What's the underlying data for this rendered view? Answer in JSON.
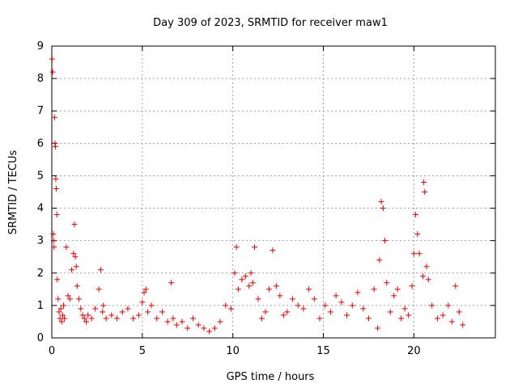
{
  "chart_data": {
    "type": "scatter",
    "title": "Day 309 of 2023, SRMTID for receiver maw1",
    "xlabel": "GPS time / hours",
    "ylabel": "SRMTID / TECUs",
    "xlim": [
      0,
      24.5
    ],
    "ylim": [
      0,
      9
    ],
    "x_ticks": [
      0,
      5,
      10,
      15,
      20
    ],
    "y_ticks": [
      0,
      1,
      2,
      3,
      4,
      5,
      6,
      7,
      8,
      9
    ],
    "x_tick_labels": [
      "0",
      "5",
      "10",
      "15",
      "20"
    ],
    "y_tick_labels": [
      "0",
      "1",
      "2",
      "3",
      "4",
      "5",
      "6",
      "7",
      "8",
      "9"
    ],
    "grid": true,
    "marker": "+",
    "color": "#e00000",
    "series": [
      {
        "name": "SRMTID",
        "x": [
          0.02,
          0.05,
          0.08,
          0.1,
          0.12,
          0.15,
          0.18,
          0.2,
          0.22,
          0.25,
          0.28,
          0.3,
          0.35,
          0.4,
          0.45,
          0.5,
          0.55,
          0.6,
          0.65,
          0.7,
          0.8,
          0.9,
          1.0,
          1.1,
          1.2,
          1.25,
          1.3,
          1.35,
          1.4,
          1.5,
          1.6,
          1.7,
          1.8,
          1.9,
          2.0,
          2.2,
          2.4,
          2.6,
          2.7,
          2.8,
          2.85,
          3.0,
          3.3,
          3.6,
          3.9,
          4.2,
          4.5,
          4.8,
          5.0,
          5.1,
          5.2,
          5.3,
          5.5,
          5.8,
          6.1,
          6.4,
          6.6,
          6.7,
          6.9,
          7.2,
          7.5,
          7.8,
          8.1,
          8.4,
          8.7,
          9.0,
          9.3,
          9.6,
          9.9,
          10.1,
          10.2,
          10.3,
          10.5,
          10.7,
          10.9,
          11.0,
          11.1,
          11.2,
          11.4,
          11.6,
          11.8,
          12.0,
          12.2,
          12.4,
          12.6,
          12.8,
          13.0,
          13.3,
          13.6,
          13.9,
          14.2,
          14.5,
          14.8,
          15.1,
          15.4,
          15.7,
          16.0,
          16.3,
          16.6,
          16.9,
          17.2,
          17.5,
          17.8,
          18.0,
          18.1,
          18.2,
          18.3,
          18.4,
          18.5,
          18.7,
          18.9,
          19.1,
          19.3,
          19.5,
          19.7,
          19.9,
          20.0,
          20.1,
          20.2,
          20.3,
          20.5,
          20.55,
          20.6,
          20.7,
          20.8,
          21.0,
          21.3,
          21.6,
          21.9,
          22.1,
          22.3,
          22.5,
          22.7
        ],
        "y": [
          8.6,
          8.2,
          3.2,
          3.0,
          2.8,
          6.8,
          6.0,
          5.9,
          4.9,
          4.6,
          3.8,
          1.8,
          1.2,
          0.8,
          0.6,
          0.9,
          0.5,
          0.7,
          1.0,
          0.6,
          2.8,
          1.3,
          1.2,
          2.1,
          2.6,
          3.5,
          2.5,
          2.2,
          1.6,
          1.2,
          0.9,
          0.7,
          0.6,
          0.5,
          0.7,
          0.6,
          0.9,
          1.5,
          2.1,
          0.8,
          1.0,
          0.6,
          0.7,
          0.6,
          0.8,
          0.9,
          0.6,
          0.7,
          1.1,
          1.4,
          1.5,
          0.8,
          1.0,
          0.6,
          0.8,
          0.5,
          1.7,
          0.6,
          0.4,
          0.5,
          0.3,
          0.6,
          0.4,
          0.3,
          0.2,
          0.3,
          0.5,
          1.0,
          0.9,
          2.0,
          2.8,
          1.5,
          1.8,
          1.9,
          1.6,
          2.0,
          1.7,
          2.8,
          1.2,
          0.6,
          0.8,
          1.5,
          2.7,
          1.6,
          1.3,
          0.7,
          0.8,
          1.2,
          1.0,
          0.9,
          1.5,
          1.2,
          0.6,
          1.0,
          0.8,
          1.3,
          1.1,
          0.7,
          1.0,
          1.4,
          0.9,
          0.6,
          1.5,
          0.3,
          2.4,
          4.2,
          4.0,
          3.0,
          1.7,
          0.8,
          1.3,
          1.5,
          0.6,
          0.9,
          0.7,
          1.6,
          2.6,
          3.8,
          3.2,
          2.6,
          1.9,
          4.8,
          4.5,
          2.2,
          1.8,
          1.0,
          0.6,
          0.7,
          1.0,
          0.5,
          1.6,
          0.8,
          0.4
        ]
      }
    ]
  }
}
